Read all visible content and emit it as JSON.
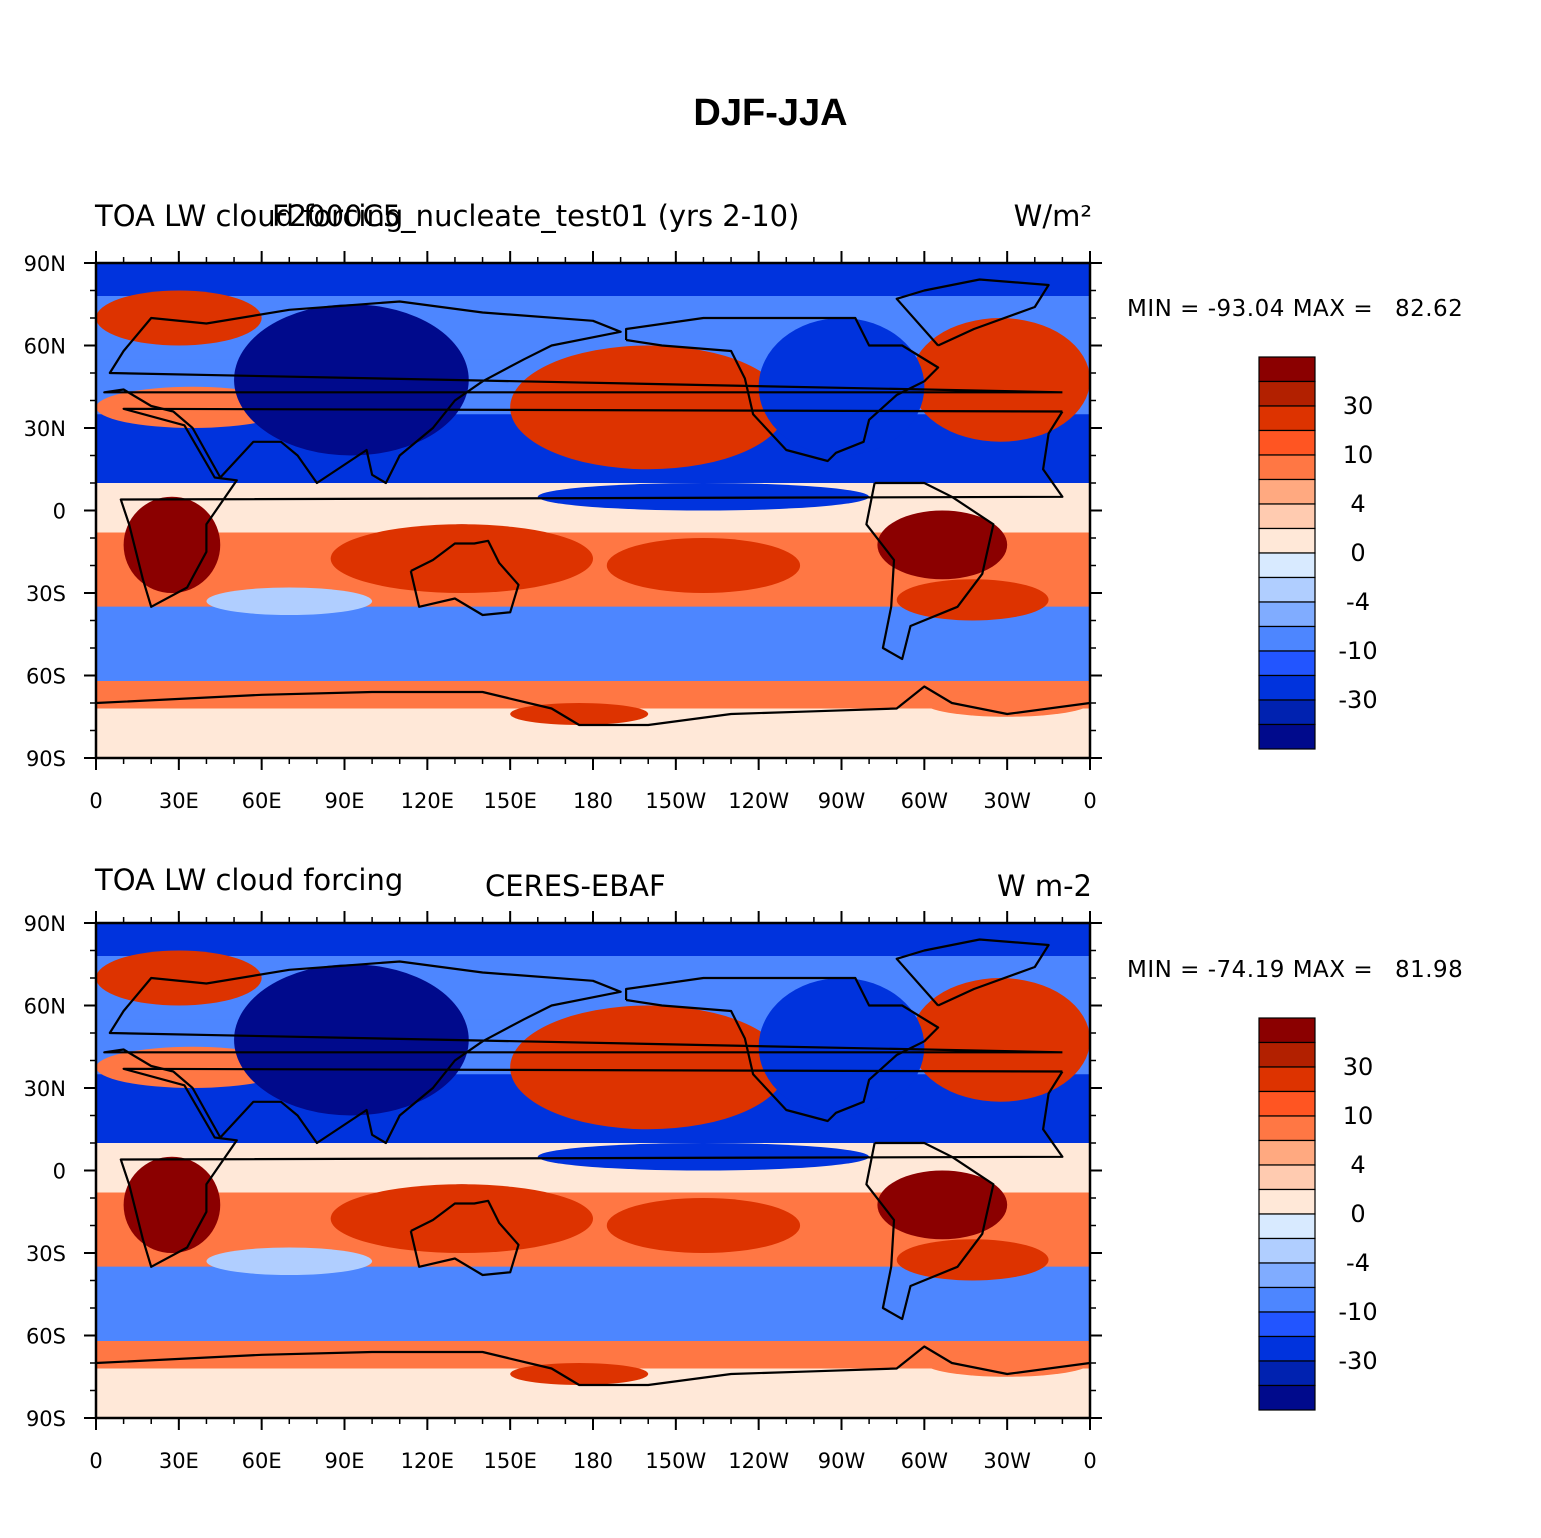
{
  "title": "DJF-JJA",
  "panels": [
    {
      "left_text": "TOA LW cloud forcing",
      "center_text": "F2000C5_nucleate_test01 (yrs 2-10)",
      "units": "W/m²",
      "min_label": "MIN =",
      "min_value": "-93.04",
      "max_label": "MAX =",
      "max_value": "82.62"
    },
    {
      "left_text": "TOA LW cloud forcing",
      "center_text": "CERES-EBAF",
      "units": "W m-2",
      "min_label": "MIN =",
      "min_value": "-74.19",
      "max_label": "MAX =",
      "max_value": "81.98"
    }
  ],
  "lat_labels": [
    "90N",
    "60N",
    "30N",
    "0",
    "30S",
    "60S",
    "90S"
  ],
  "lon_labels": [
    "0",
    "30E",
    "60E",
    "90E",
    "120E",
    "150E",
    "180",
    "150W",
    "120W",
    "90W",
    "60W",
    "30W",
    "0"
  ],
  "colorbar": {
    "colors": [
      "#8b0000",
      "#b22000",
      "#dd3300",
      "#ff5522",
      "#ff7744",
      "#ffa980",
      "#ffcbb0",
      "#ffe8d8",
      "#d8eaff",
      "#b0ceff",
      "#80acff",
      "#4d86ff",
      "#2255ff",
      "#0033dd",
      "#0022b0",
      "#000a8c"
    ],
    "labels": [
      "30",
      "10",
      "4",
      "0",
      "-4",
      "-10",
      "-30"
    ]
  },
  "map_colors": {
    "ocean_base": "#4d86ff",
    "strong_pos": "#dd3300",
    "very_pos": "#8b0000",
    "mid_pos": "#ff7744",
    "weak_pos": "#ffe8d8",
    "strong_neg": "#0033dd",
    "very_neg": "#000a8c",
    "weak_neg": "#b0ceff"
  }
}
